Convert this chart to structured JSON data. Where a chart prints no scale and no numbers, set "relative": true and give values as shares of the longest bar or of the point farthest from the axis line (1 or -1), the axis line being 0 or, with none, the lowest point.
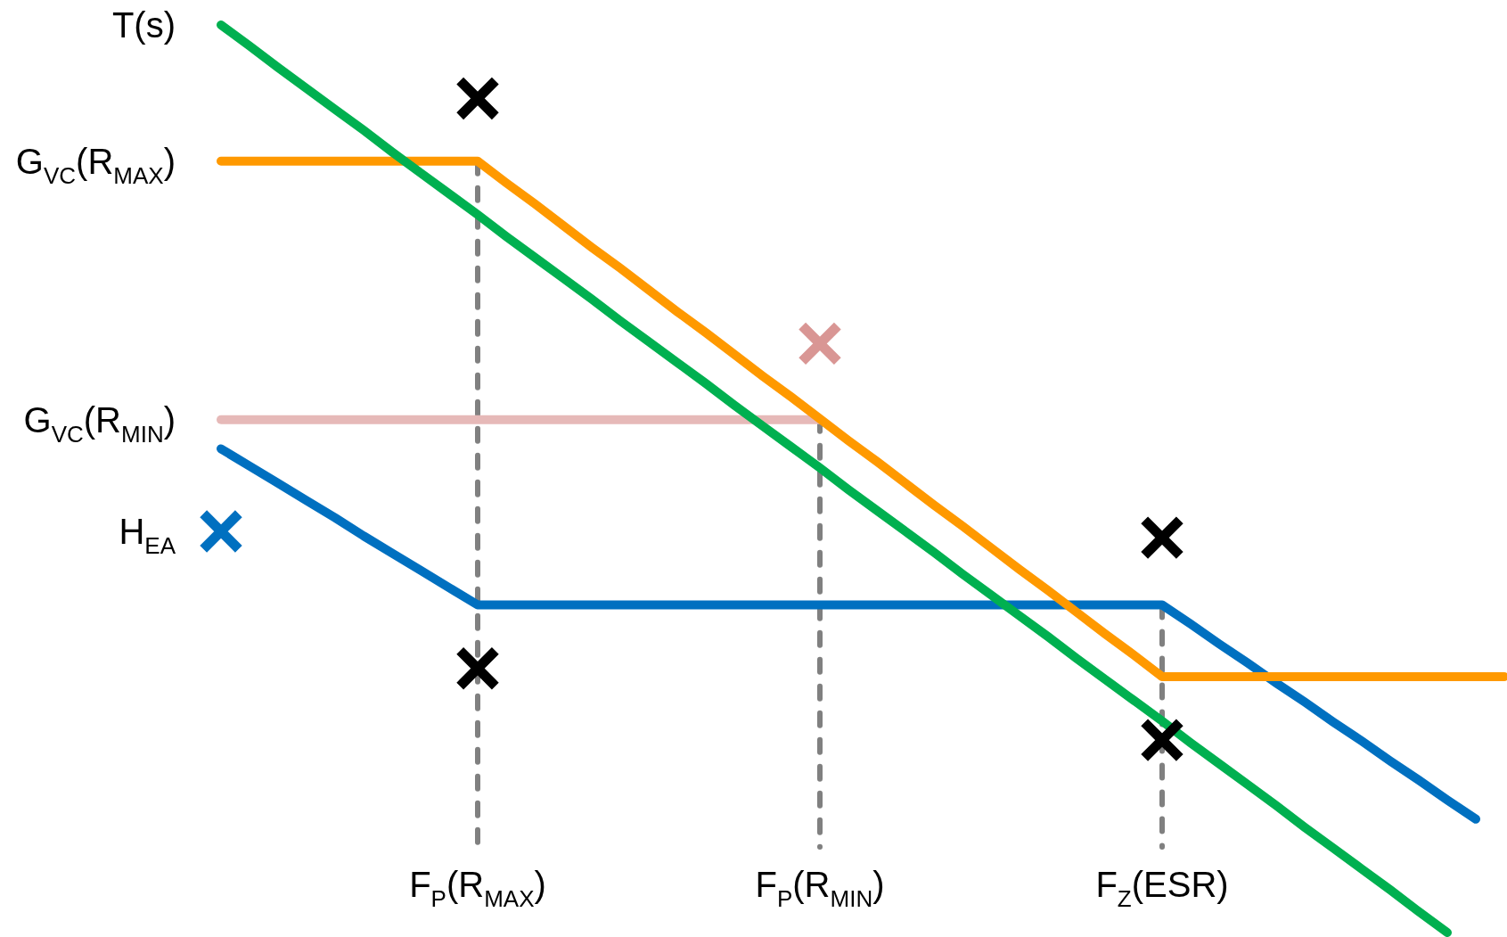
{
  "chart_data": {
    "type": "line",
    "relative": true,
    "tick_labels": "x",
    "line_style": "solid",
    "categories": [
      null,
      null,
      null,
      null,
      null,
      null,
      null,
      null,
      null,
      "F$_{P}$(R$_{MAX}$)",
      null,
      null,
      null,
      null,
      null,
      null,
      null,
      null,
      null,
      null,
      null,
      "F$_{P}$(R$_{MIN}$)",
      null,
      null,
      null,
      null,
      null,
      null,
      null,
      null,
      null,
      null,
      null,
      "F$_{Z}$(ESR)",
      null,
      null,
      null,
      null,
      null,
      null,
      null,
      null,
      null,
      null,
      null,
      null
    ],
    "series": [
      {
        "name": "T(s)",
        "color": "#00b050",
        "values": [
          1,
          0.977,
          0.953,
          0.93,
          0.907,
          0.884,
          0.86,
          0.837,
          0.814,
          0.791,
          0.767,
          0.744,
          0.721,
          0.698,
          0.674,
          0.651,
          0.628,
          0.605,
          0.581,
          0.558,
          0.535,
          0.512,
          0.488,
          0.465,
          0.442,
          0.419,
          0.395,
          0.372,
          0.349,
          0.326,
          0.302,
          0.279,
          0.256,
          0.233,
          0.209,
          0.186,
          0.163,
          0.14,
          0.116,
          0.093,
          0.07,
          0.047,
          0.023,
          0,
          null,
          null
        ]
      },
      {
        "name": "G$_{VC}$(R$_{MAX}$)",
        "color": "#ff9900",
        "values": [
          0.85,
          0.85,
          0.85,
          0.85,
          0.85,
          0.85,
          0.85,
          0.85,
          0.85,
          0.85,
          0.826,
          0.803,
          0.779,
          0.755,
          0.732,
          0.708,
          0.684,
          0.661,
          0.637,
          0.613,
          0.59,
          0.566,
          0.542,
          0.519,
          0.495,
          0.471,
          0.448,
          0.424,
          0.4,
          0.377,
          0.353,
          0.329,
          0.306,
          0.282,
          0.282,
          0.282,
          0.282,
          0.282,
          0.282,
          0.282,
          0.282,
          0.282,
          0.282,
          0.282,
          0.282,
          0.282
        ]
      },
      {
        "name": "G$_{VC}$(R$_{MIN}$)",
        "color": "#e6b9b8",
        "values": [
          0.565,
          0.565,
          0.565,
          0.565,
          0.565,
          0.565,
          0.565,
          0.565,
          0.565,
          0.565,
          0.565,
          0.565,
          0.565,
          0.565,
          0.565,
          0.565,
          0.565,
          0.565,
          0.565,
          0.565,
          0.565,
          0.565,
          null,
          null,
          null,
          null,
          null,
          null,
          null,
          null,
          null,
          null,
          null,
          null,
          null,
          null,
          null,
          null,
          null,
          null,
          null,
          null,
          null,
          null,
          null,
          null
        ]
      },
      {
        "color": "#0070c0",
        "values": [
          0.533,
          0.514,
          0.495,
          0.476,
          0.457,
          0.437,
          0.418,
          0.399,
          0.38,
          0.361,
          0.361,
          0.361,
          0.361,
          0.361,
          0.361,
          0.361,
          0.361,
          0.361,
          0.361,
          0.361,
          0.361,
          0.361,
          0.361,
          0.361,
          0.361,
          0.361,
          0.361,
          0.361,
          0.361,
          0.361,
          0.361,
          0.361,
          0.361,
          0.361,
          0.34,
          0.318,
          0.297,
          0.275,
          0.254,
          0.232,
          0.211,
          0.189,
          0.168,
          0.146,
          0.125,
          null
        ]
      },
      {
        "name": "H$_{EA}$",
        "type": "scatter",
        "marker": "cross",
        "color": "#0070c0",
        "values": [
          0.442,
          null,
          null,
          null,
          null,
          null,
          null,
          null,
          null,
          null,
          null,
          null,
          null,
          null,
          null,
          null,
          null,
          null,
          null,
          null,
          null,
          null,
          null,
          null,
          null,
          null,
          null,
          null,
          null,
          null,
          null,
          null,
          null,
          null,
          null,
          null,
          null,
          null,
          null,
          null,
          null,
          null,
          null,
          null,
          null,
          null
        ]
      },
      {
        "type": "scatter",
        "marker": "cross",
        "color": "#000000",
        "values": [
          null,
          null,
          null,
          null,
          null,
          null,
          null,
          null,
          null,
          0.919,
          null,
          null,
          null,
          null,
          null,
          null,
          null,
          null,
          null,
          null,
          null,
          null,
          null,
          null,
          null,
          null,
          null,
          null,
          null,
          null,
          null,
          null,
          null,
          0.435,
          null,
          null,
          null,
          null,
          null,
          null,
          null,
          null,
          null,
          null,
          null,
          null
        ]
      },
      {
        "type": "scatter",
        "marker": "cross",
        "color": "#000000",
        "values": [
          null,
          null,
          null,
          null,
          null,
          null,
          null,
          null,
          null,
          0.291,
          null,
          null,
          null,
          null,
          null,
          null,
          null,
          null,
          null,
          null,
          null,
          null,
          null,
          null,
          null,
          null,
          null,
          null,
          null,
          null,
          null,
          null,
          null,
          0.212,
          null,
          null,
          null,
          null,
          null,
          null,
          null,
          null,
          null,
          null,
          null,
          null
        ]
      },
      {
        "type": "scatter",
        "marker": "cross",
        "color": "#d99694",
        "values": [
          null,
          null,
          null,
          null,
          null,
          null,
          null,
          null,
          null,
          null,
          null,
          null,
          null,
          null,
          null,
          null,
          null,
          null,
          null,
          null,
          null,
          0.649,
          null,
          null,
          null,
          null,
          null,
          null,
          null,
          null,
          null,
          null,
          null,
          null,
          null,
          null,
          null,
          null,
          null,
          null,
          null,
          null,
          null,
          null,
          null,
          null
        ]
      }
    ],
    "ref_lines": [
      {
        "axis": "x",
        "value": "F$_{P}$(R$_{MAX}$)",
        "color": "#808080",
        "line_style": "dashed"
      },
      {
        "axis": "x",
        "value": "F$_{P}$(R$_{MIN}$)",
        "color": "#808080",
        "line_style": "dashed"
      },
      {
        "axis": "x",
        "value": "F$_{Z}$(ESR)",
        "color": "#808080",
        "line_style": "dashed"
      }
    ]
  }
}
